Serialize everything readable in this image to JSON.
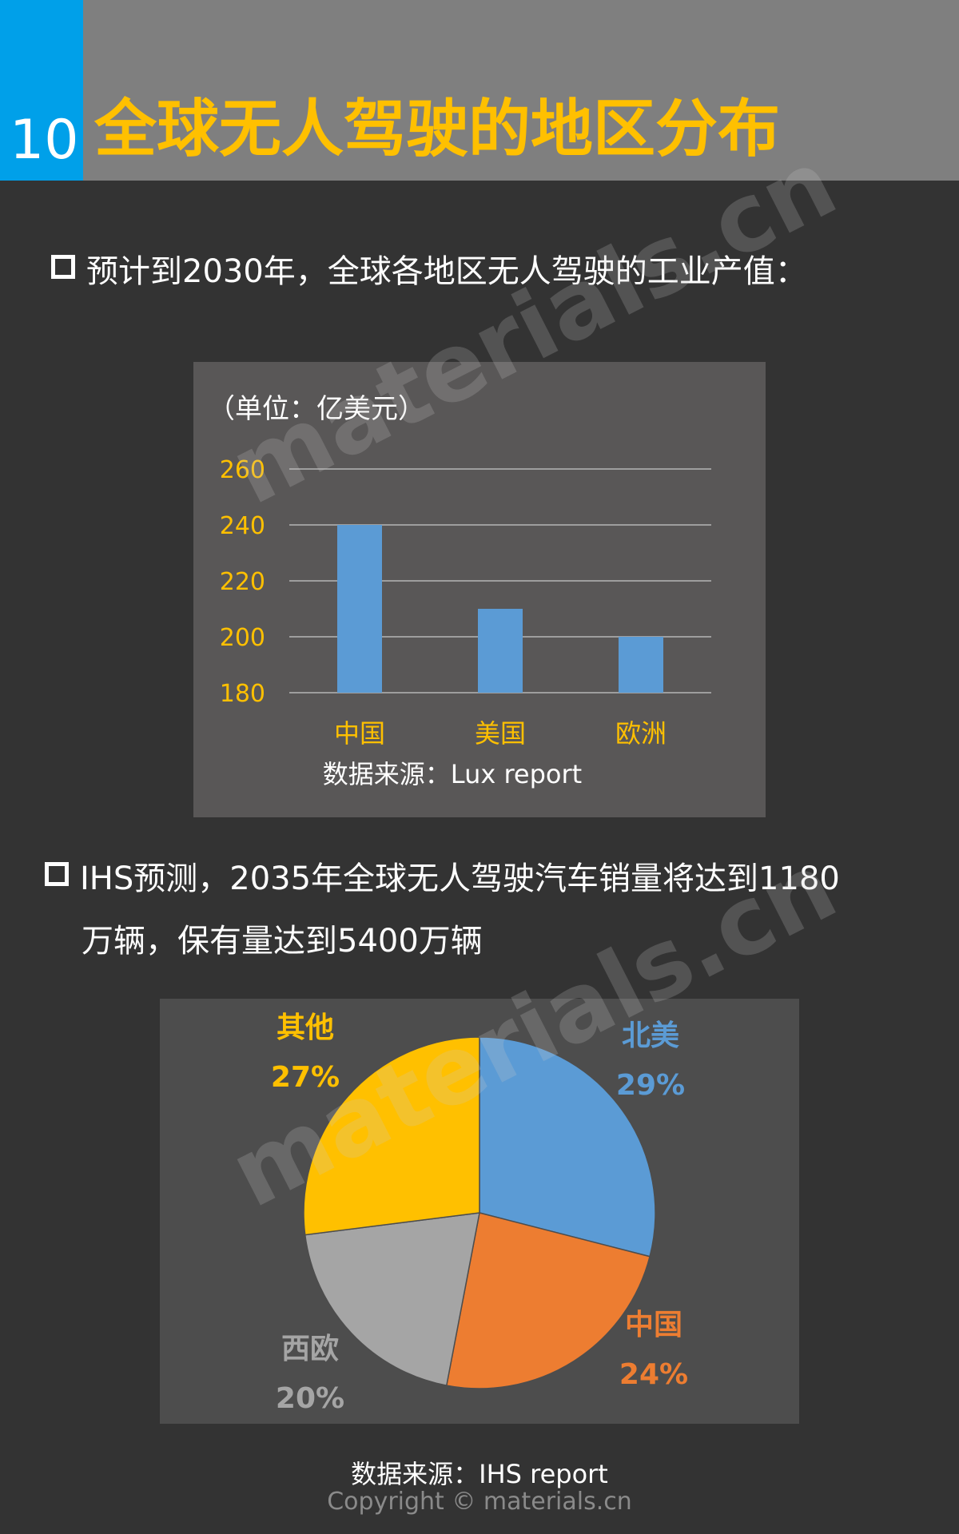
{
  "header": {
    "number": "10",
    "title": "全球无人驾驶的地区分布"
  },
  "section1": {
    "text": "预计到2030年，全球各地区无人驾驶的工业产值："
  },
  "section2": {
    "line1": "IHS预测，2035年全球无人驾驶汽车销量将达到1180",
    "line2": "万辆，保有量达到5400万辆"
  },
  "chart_data": [
    {
      "type": "bar",
      "unit_label": "（单位：亿美元）",
      "categories": [
        "中国",
        "美国",
        "欧洲"
      ],
      "values": [
        240,
        210,
        200
      ],
      "yticks": [
        "260",
        "240",
        "220",
        "200",
        "180"
      ],
      "ylim": [
        180,
        260
      ],
      "grid": true,
      "bar_color": "#5b9bd5",
      "tick_color": "#ffc000",
      "source": "数据来源：Lux report"
    },
    {
      "type": "pie",
      "slices": [
        {
          "label": "北美",
          "pct": "29%",
          "value": 29,
          "color": "#5b9bd5"
        },
        {
          "label": "中国",
          "pct": "24%",
          "value": 24,
          "color": "#ed7d31"
        },
        {
          "label": "西欧",
          "pct": "20%",
          "value": 20,
          "color": "#a5a5a5"
        },
        {
          "label": "其他",
          "pct": "27%",
          "value": 27,
          "color": "#ffc000"
        }
      ],
      "source": "数据来源：IHS report"
    }
  ],
  "footer": {
    "copyright": "Copyright © materials.cn"
  },
  "watermarks": [
    "materials.cn",
    "materials.cn"
  ]
}
